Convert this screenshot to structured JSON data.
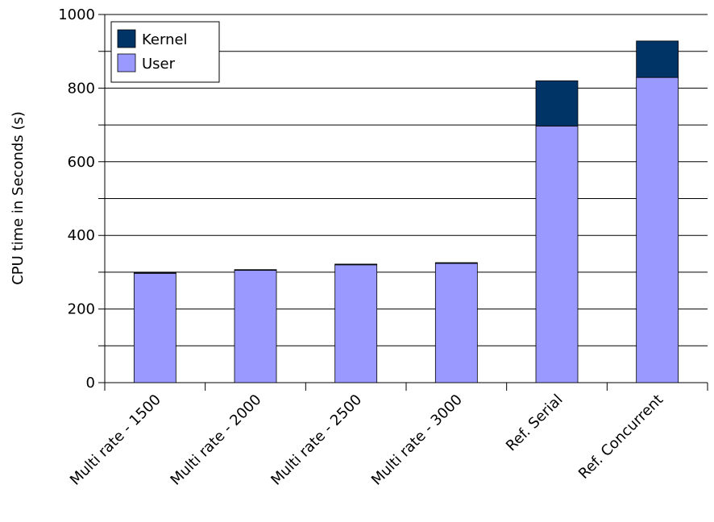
{
  "chart_data": {
    "type": "stacked_bar",
    "y_label": "CPU time in Seconds (s)",
    "categories": [
      "Multi rate - 1500",
      "Multi rate - 2000",
      "Multi rate - 2500",
      "Multi rate - 3000",
      "Ref. Serial",
      "Ref. Concurrent"
    ],
    "series": [
      {
        "name": "User",
        "color": "#9999ff",
        "values": [
          297,
          305,
          320,
          324,
          697,
          829
        ]
      },
      {
        "name": "Kernel",
        "color": "#003366",
        "values": [
          2,
          2,
          2,
          2,
          123,
          99
        ]
      }
    ],
    "ylim": [
      0,
      1000
    ],
    "yticks": [
      0,
      200,
      400,
      600,
      800,
      1000
    ],
    "yticks_minor": [
      100,
      300,
      500,
      700,
      900
    ],
    "grid": true,
    "legend": "upper left"
  }
}
